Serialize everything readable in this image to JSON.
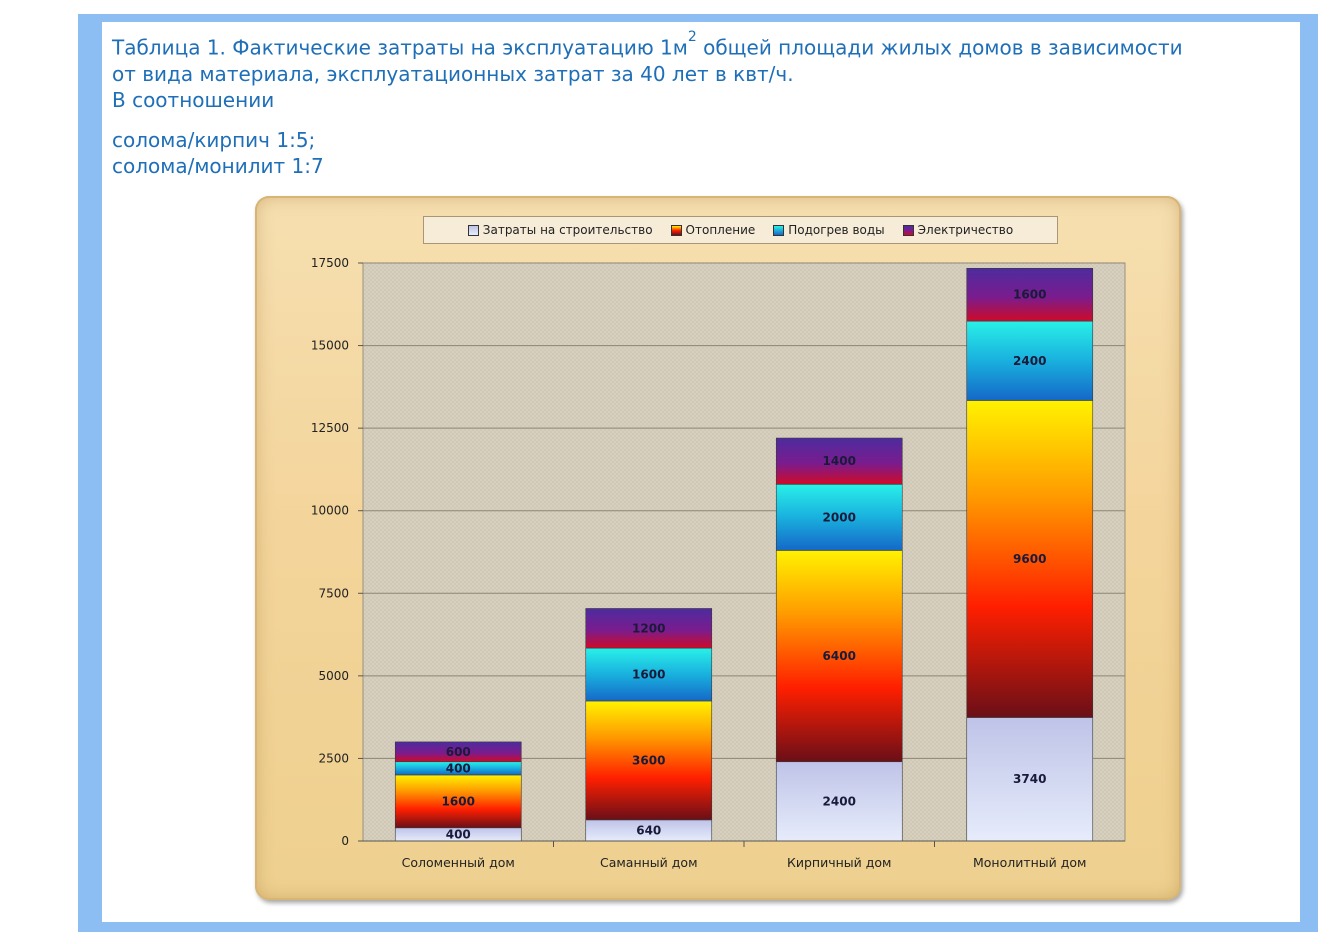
{
  "caption": {
    "line1_a": "Таблица 1. Фактические затраты на эксплуатацию 1м",
    "sup": "2",
    "line1_b": " общей площади жилых домов в зависимости",
    "line2": "от вида материала, эксплуатационных затрат за 40 лет в квт/ч.",
    "line3": "В соотношении"
  },
  "ratios": {
    "r1": "солома/кирпич 1:5;",
    "r2": "солома/монилит 1:7"
  },
  "colors": {
    "construction": [
      "#bfc3e8",
      "#e6ecfb"
    ],
    "heating": [
      "#6a0f18",
      "#ff1f00",
      "#ff9b00",
      "#fff200"
    ],
    "water": [
      "#1568c8",
      "#19b0de",
      "#29f0e8"
    ],
    "electricity": [
      "#cf0a28",
      "#7a1c8e",
      "#4d2c9e"
    ]
  },
  "chart_data": {
    "type": "bar",
    "stacked": true,
    "categories": [
      "Соломенный дом",
      "Саманный дом",
      "Кирпичный дом",
      "Монолитный дом"
    ],
    "series": [
      {
        "name": "Затраты на строительство",
        "values": [
          400,
          640,
          2400,
          3740
        ]
      },
      {
        "name": "Отопление",
        "values": [
          1600,
          3600,
          6400,
          9600
        ]
      },
      {
        "name": "Подогрев воды",
        "values": [
          400,
          1600,
          2000,
          2400
        ]
      },
      {
        "name": "Электричество",
        "values": [
          600,
          1200,
          1400,
          1600
        ]
      }
    ],
    "yticks": [
      0,
      2500,
      5000,
      7500,
      10000,
      12500,
      15000,
      17500
    ],
    "ylim": [
      0,
      17500
    ],
    "grid": true,
    "legend_position": "top"
  }
}
